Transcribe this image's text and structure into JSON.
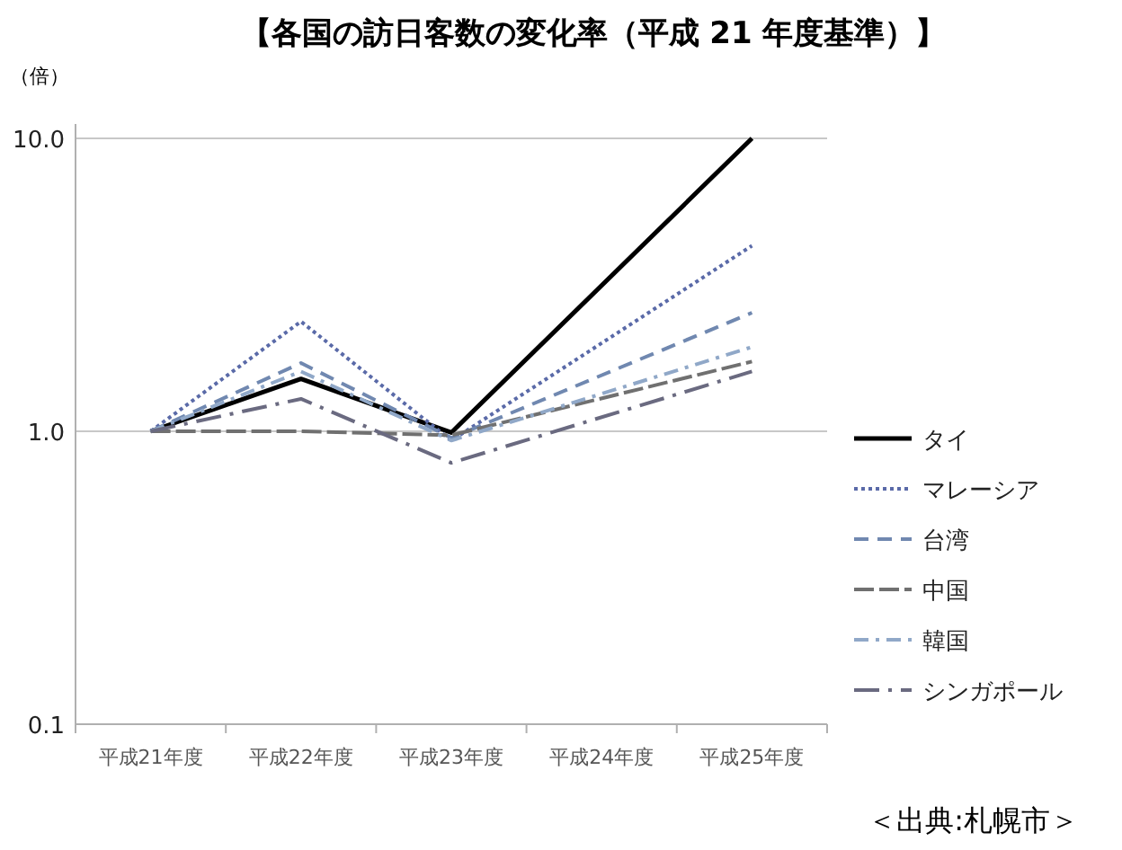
{
  "chart_data": {
    "type": "line",
    "title": "【各国の訪日客数の変化率（平成 21 年度基準）】",
    "ylabel": "（倍）",
    "annotations": [
      "＜出典:札幌市＞"
    ],
    "categories": [
      "平成21年度",
      "平成22年度",
      "平成23年度",
      "平成24年度",
      "平成25年度"
    ],
    "log": "y",
    "ylim": [
      0.1,
      10
    ],
    "yticks": [
      0.1,
      {
        "value": 1,
        "label": "1.0"
      },
      {
        "value": 10,
        "label": "10.0"
      }
    ],
    "grid": "y",
    "legend": "right",
    "marker": "none",
    "series": [
      {
        "name": "タイ",
        "color": "#000000",
        "line_style": "solid",
        "values": [
          1.0,
          1.51,
          0.99,
          null,
          10.0
        ]
      },
      {
        "name": "マレーシア",
        "color": "#5a6aa8",
        "line_style": "dotted",
        "values": [
          1.0,
          2.37,
          0.93,
          null,
          4.3
        ]
      },
      {
        "name": "台湾",
        "color": "#7088b0",
        "line_style": "dashed",
        "values": [
          1.0,
          1.71,
          0.95,
          null,
          2.54
        ]
      },
      {
        "name": "中国",
        "color": "#707070",
        "line_style": "longdash",
        "values": [
          1.0,
          1.0,
          0.97,
          null,
          1.73
        ]
      },
      {
        "name": "韓国",
        "color": "#90a8c8",
        "line_style": "dashdot",
        "values": [
          1.0,
          1.6,
          0.93,
          null,
          1.94
        ]
      },
      {
        "name": "シンガポール",
        "color": "#6a6a80",
        "line_style": "longdashdot",
        "values": [
          1.0,
          1.29,
          0.78,
          null,
          1.6
        ]
      }
    ]
  }
}
